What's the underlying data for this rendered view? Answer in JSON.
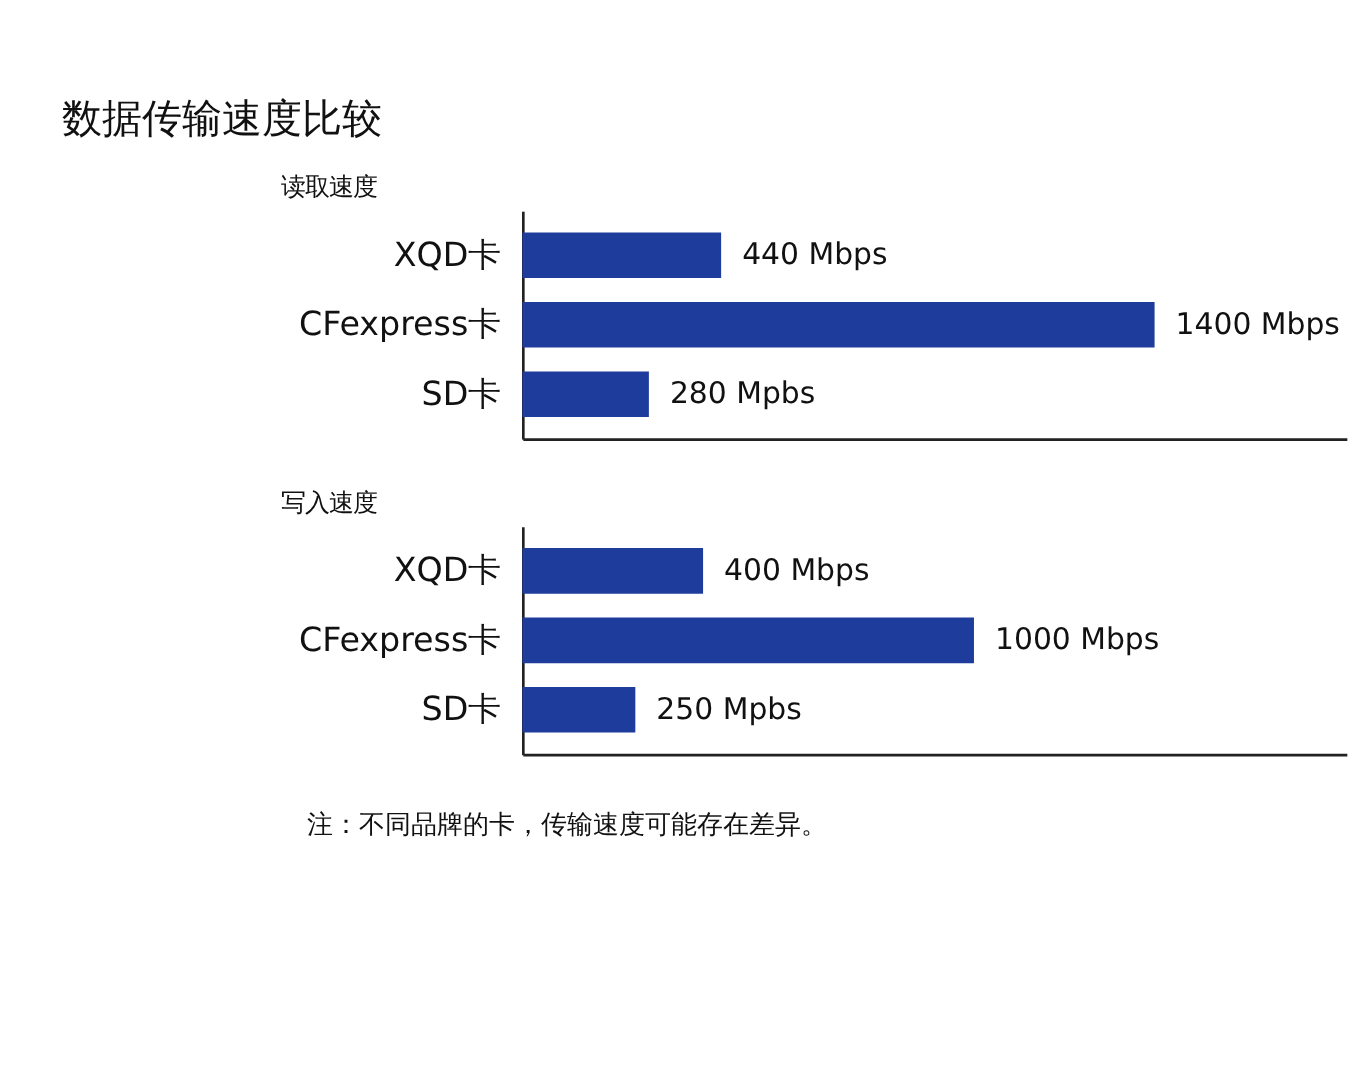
{
  "chart_data": [
    {
      "type": "bar",
      "orientation": "horizontal",
      "title": "数据传输速度比较",
      "subtitle": "读取速度",
      "categories": [
        "XQD卡",
        "CFexpress卡",
        "SD卡"
      ],
      "values": [
        440,
        1400,
        280
      ],
      "value_labels": [
        "440 Mbps",
        "1400 Mbps",
        "280 Mpbs"
      ],
      "color": "#1e3c9c",
      "xlim": [
        0,
        1825
      ],
      "tick_labels": "y",
      "grid": false
    },
    {
      "type": "bar",
      "orientation": "horizontal",
      "subtitle": "写入速度",
      "categories": [
        "XQD卡",
        "CFexpress卡",
        "SD卡"
      ],
      "values": [
        400,
        1000,
        250
      ],
      "value_labels": [
        "400 Mbps",
        "1000 Mbps",
        "250 Mpbs"
      ],
      "color": "#1e3c9c",
      "xlim": [
        0,
        1825
      ],
      "tick_labels": "y",
      "grid": false,
      "annotations": [
        "注：不同品牌的卡，传输速度可能存在差异。"
      ]
    }
  ]
}
